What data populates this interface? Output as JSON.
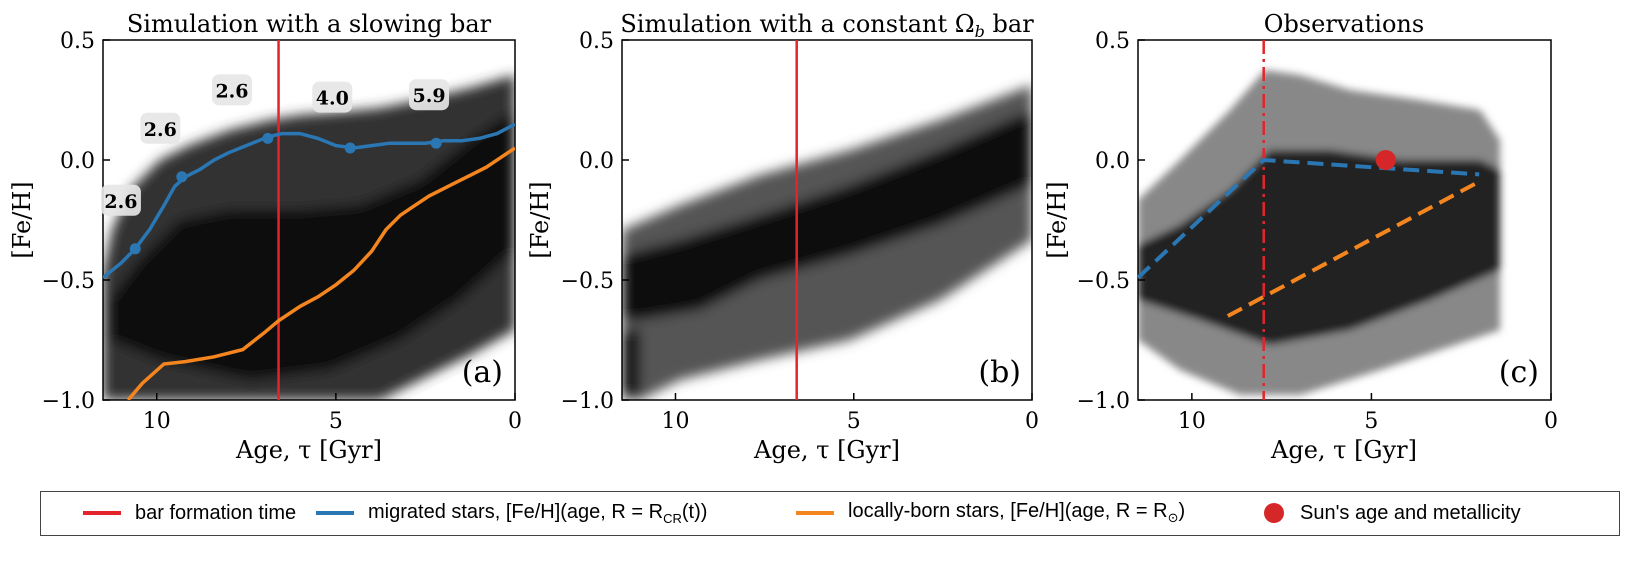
{
  "colors": {
    "bar_line": "#e3242b",
    "migrated": "#2a77b4",
    "local": "#f5861f",
    "sun": "#d62728"
  },
  "chart_data": [
    {
      "type": "heatmap",
      "panel": "(a)",
      "title": "Simulation with a slowing bar",
      "xlabel": "Age, τ [Gyr]",
      "ylabel": "[Fe/H]",
      "xlim": [
        11.5,
        0
      ],
      "ylim": [
        -1.0,
        0.5
      ],
      "xticks": [
        "10",
        "5",
        "0"
      ],
      "yticks": [
        "0.5",
        "0.0",
        "−0.5",
        "−1.0"
      ],
      "bar_formation_age": 6.6,
      "migrated_line": {
        "x": [
          11.5,
          11.0,
          10.6,
          10.2,
          9.8,
          9.5,
          9.2,
          8.8,
          8.4,
          8.0,
          7.5,
          7.0,
          6.8,
          6.5,
          6.0,
          5.5,
          5.0,
          4.5,
          4.0,
          3.5,
          3.0,
          2.5,
          2.0,
          1.5,
          1.0,
          0.5,
          0.0
        ],
        "y": [
          -0.49,
          -0.43,
          -0.37,
          -0.29,
          -0.19,
          -0.11,
          -0.07,
          -0.04,
          0.0,
          0.03,
          0.06,
          0.09,
          0.1,
          0.11,
          0.11,
          0.09,
          0.06,
          0.05,
          0.06,
          0.07,
          0.07,
          0.07,
          0.08,
          0.08,
          0.09,
          0.11,
          0.15
        ]
      },
      "migrated_markers": {
        "x": [
          10.6,
          9.3,
          6.9,
          4.6,
          2.2
        ],
        "y": [
          -0.37,
          -0.07,
          0.09,
          0.05,
          0.07
        ]
      },
      "annotations": [
        {
          "text": "2.6",
          "x": 11.0,
          "y": -0.17
        },
        {
          "text": "2.6",
          "x": 9.9,
          "y": 0.13
        },
        {
          "text": "2.6",
          "x": 7.9,
          "y": 0.29
        },
        {
          "text": "4.0",
          "x": 5.1,
          "y": 0.26
        },
        {
          "text": "5.9",
          "x": 2.4,
          "y": 0.27
        }
      ],
      "local_line": {
        "x": [
          10.8,
          10.4,
          9.8,
          9.2,
          8.4,
          7.6,
          7.0,
          6.6,
          6.0,
          5.5,
          5.0,
          4.5,
          4.0,
          3.6,
          3.2,
          2.8,
          2.4,
          2.0,
          1.6,
          1.2,
          0.8,
          0.4,
          0.0
        ],
        "y": [
          -1.0,
          -0.93,
          -0.85,
          -0.84,
          -0.82,
          -0.79,
          -0.72,
          -0.67,
          -0.61,
          -0.57,
          -0.52,
          -0.46,
          -0.38,
          -0.29,
          -0.23,
          -0.19,
          -0.15,
          -0.12,
          -0.09,
          -0.06,
          -0.03,
          0.01,
          0.05
        ]
      }
    },
    {
      "type": "heatmap",
      "panel": "(b)",
      "title": "Simulation with a constant Ω_b bar",
      "title_main": "Simulation with a constant Ω",
      "title_sub": "b",
      "title_end": " bar",
      "xlabel": "Age, τ [Gyr]",
      "ylabel": "[Fe/H]",
      "xlim": [
        11.5,
        0
      ],
      "ylim": [
        -1.0,
        0.5
      ],
      "xticks": [
        "10",
        "5",
        "0"
      ],
      "yticks": [
        "0.5",
        "0.0",
        "−0.5",
        "−1.0"
      ],
      "bar_formation_age": 6.6
    },
    {
      "type": "heatmap",
      "panel": "(c)",
      "title": "Observations",
      "xlabel": "Age, τ [Gyr]",
      "ylabel": "[Fe/H]",
      "xlim": [
        11.5,
        0
      ],
      "ylim": [
        -1.0,
        0.5
      ],
      "xticks": [
        "10",
        "5",
        "0"
      ],
      "yticks": [
        "0.5",
        "0.0",
        "−0.5",
        "−1.0"
      ],
      "bar_formation_age": 8.0,
      "migrated_line": {
        "x": [
          11.5,
          8.0,
          2.0
        ],
        "y": [
          -0.49,
          0.0,
          -0.06
        ]
      },
      "local_line": {
        "x": [
          9.0,
          2.0
        ],
        "y": [
          -0.65,
          -0.09
        ]
      },
      "sun": {
        "age": 4.6,
        "feh": 0.0
      }
    }
  ],
  "legend": {
    "items": [
      {
        "label": "bar formation time",
        "kind": "line",
        "color": "#e3242b"
      },
      {
        "label": "migrated stars, [Fe/H](age, R = R_CR(t))",
        "main": "migrated stars, [Fe/H](age, R = R",
        "sub": "CR",
        "end": "(t))",
        "kind": "line",
        "color": "#2a77b4"
      },
      {
        "label": "locally-born stars, [Fe/H](age, R = R_⊙)",
        "main": "locally-born stars, [Fe/H](age, R = R",
        "sub": "⊙",
        "end": ")",
        "kind": "line",
        "color": "#f5861f"
      },
      {
        "label": "Sun's age and metallicity",
        "kind": "dot",
        "color": "#d62728"
      }
    ]
  }
}
